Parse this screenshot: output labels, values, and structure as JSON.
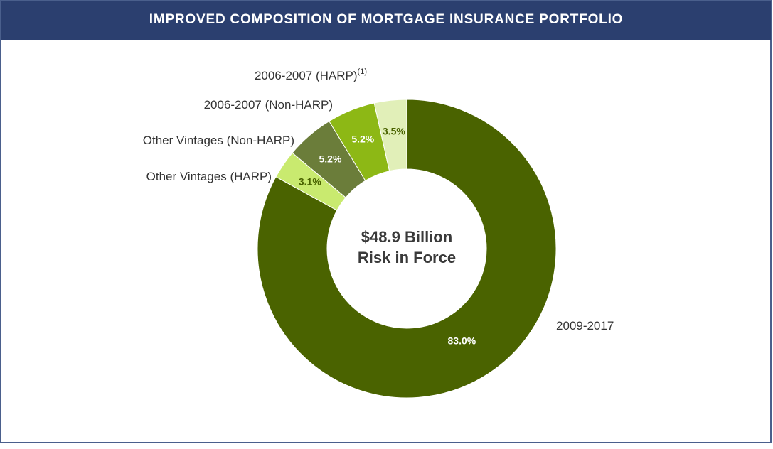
{
  "chart_data": {
    "type": "donut",
    "title": "IMPROVED COMPOSITION OF MORTGAGE INSURANCE PORTFOLIO",
    "center_label": [
      "$48.9 Billion",
      "Risk in Force"
    ],
    "categories": [
      "2009-2017",
      "Other Vintages (HARP)",
      "Other Vintages (Non-HARP)",
      "2006-2007 (Non-HARP)",
      "2006-2007 (HARP)"
    ],
    "category_superscripts": [
      null,
      null,
      null,
      null,
      "(1)"
    ],
    "values": [
      83.0,
      3.1,
      5.2,
      5.2,
      3.5
    ],
    "value_labels": [
      "83.0%",
      "3.1%",
      "5.2%",
      "5.2%",
      "3.5%"
    ],
    "colors": [
      "#4a6300",
      "#c9ea6f",
      "#6b7d3a",
      "#8db815",
      "#e1efb8"
    ],
    "value_label_colors": [
      "#ffffff",
      "#4a6300",
      "#ffffff",
      "#ffffff",
      "#4a6300"
    ]
  }
}
